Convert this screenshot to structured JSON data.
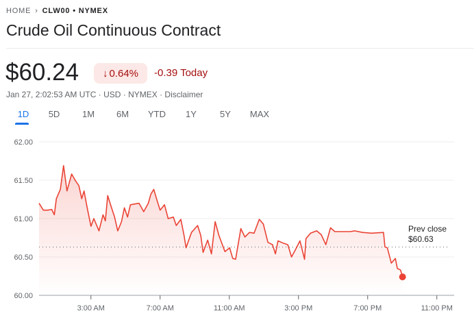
{
  "breadcrumb": {
    "home": "HOME",
    "separator": "›",
    "ticker": "CLW00 • NYMEX"
  },
  "title": "Crude Oil Continuous Contract",
  "quote": {
    "price": "$60.24",
    "change_pct": "0.64%",
    "change_icon": "arrow-down-icon",
    "change_today": "-0.39 Today",
    "meta": "Jan 27, 2:02:53 AM UTC · USD · NYMEX · Disclaimer"
  },
  "tabs": [
    {
      "label": "1D",
      "active": true
    },
    {
      "label": "5D"
    },
    {
      "label": "1M"
    },
    {
      "label": "6M"
    },
    {
      "label": "YTD"
    },
    {
      "label": "1Y"
    },
    {
      "label": "5Y"
    },
    {
      "label": "MAX"
    }
  ],
  "colors": {
    "down": "#a50e0e",
    "line": "#ea4335",
    "accent": "#1a73e8"
  },
  "chart_data": {
    "type": "area",
    "y_ticks": [
      "62.00",
      "61.50",
      "61.00",
      "60.50",
      "60.00"
    ],
    "ylim": [
      60,
      62
    ],
    "x_ticks": [
      "3:00 AM",
      "7:00 AM",
      "11:00 AM",
      "3:00 PM",
      "7:00 PM",
      "11:00 PM"
    ],
    "xlim": [
      "00:00",
      "24:00"
    ],
    "grid": true,
    "prev_close": {
      "label": "Prev close",
      "value_label": "$60.63",
      "value": 60.63
    },
    "series": [
      {
        "x": [
          "00:00",
          "00:15",
          "00:30",
          "00:44",
          "00:53",
          "01:00",
          "01:14",
          "01:25",
          "01:30",
          "01:37",
          "01:53",
          "02:07",
          "02:18",
          "02:28",
          "02:36",
          "02:47",
          "03:00",
          "03:10",
          "03:28",
          "03:42",
          "03:50",
          "03:58",
          "04:09",
          "04:22",
          "04:33",
          "04:46",
          "04:56",
          "05:07",
          "05:17",
          "05:47",
          "06:03",
          "06:19",
          "06:28",
          "06:38",
          "06:50",
          "07:00",
          "07:15",
          "07:28",
          "07:46",
          "07:56",
          "08:12",
          "08:23",
          "08:30",
          "08:49",
          "09:10",
          "09:21",
          "09:29",
          "09:45",
          "09:58",
          "10:11",
          "10:24",
          "10:45",
          "11:01",
          "11:12",
          "11:22",
          "11:40",
          "11:54",
          "12:10",
          "12:26",
          "12:44",
          "12:58",
          "13:14",
          "13:30",
          "13:40",
          "13:49",
          "14:07",
          "14:23",
          "14:36",
          "14:49",
          "15:05",
          "15:21",
          "15:26",
          "15:42",
          "16:03",
          "16:19",
          "16:35",
          "16:51",
          "17:06",
          "17:59",
          "18:15",
          "18:42",
          "19:13",
          "19:55",
          "20:00",
          "20:08",
          "20:22",
          "20:36",
          "20:43",
          "20:54",
          "21:01"
        ],
        "values": [
          61.2,
          61.11,
          61.11,
          61.12,
          61.05,
          61.26,
          61.38,
          61.69,
          61.55,
          61.36,
          61.58,
          61.49,
          61.43,
          61.26,
          61.36,
          61.14,
          60.9,
          61.0,
          60.84,
          61.05,
          60.97,
          61.3,
          61.17,
          61.02,
          60.84,
          60.96,
          61.14,
          61.02,
          61.18,
          61.2,
          61.09,
          61.2,
          61.32,
          61.38,
          61.23,
          61.11,
          61.18,
          61.0,
          61.02,
          60.91,
          60.99,
          60.78,
          60.62,
          60.82,
          60.91,
          60.78,
          60.56,
          60.72,
          60.54,
          60.96,
          60.78,
          60.57,
          60.62,
          60.48,
          60.47,
          60.87,
          60.76,
          60.82,
          60.81,
          60.99,
          60.93,
          60.69,
          60.66,
          60.54,
          60.71,
          60.68,
          60.66,
          60.5,
          60.59,
          60.71,
          60.47,
          60.74,
          60.81,
          60.84,
          60.79,
          60.66,
          60.88,
          60.83,
          60.83,
          60.84,
          60.82,
          60.81,
          60.82,
          60.63,
          60.62,
          60.42,
          60.48,
          60.35,
          60.33,
          60.24
        ]
      }
    ]
  }
}
